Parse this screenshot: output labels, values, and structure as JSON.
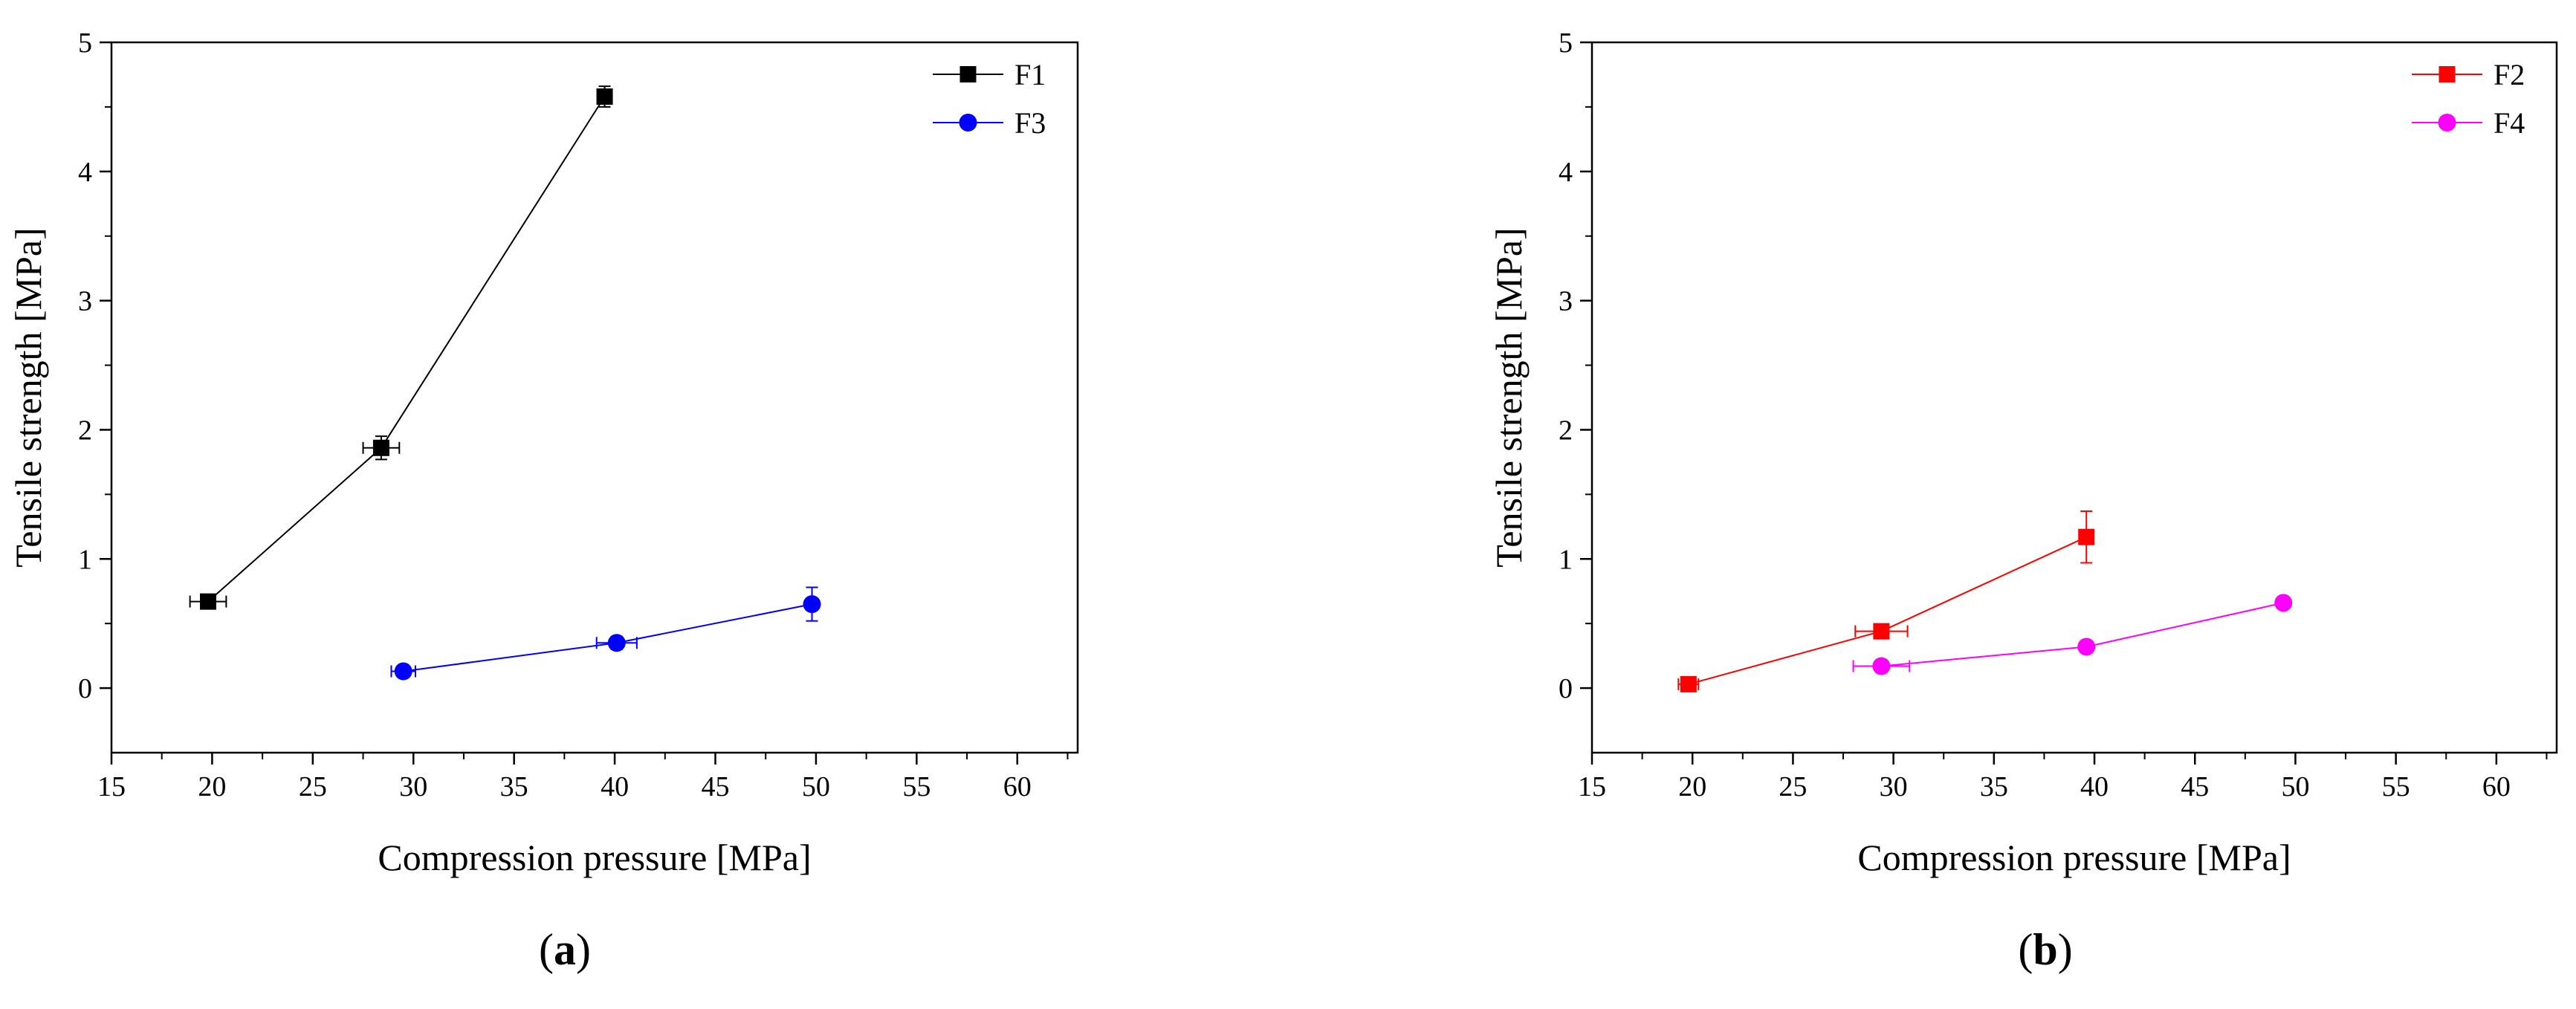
{
  "panels": [
    {
      "caption": "(a)",
      "caption_letter": "a",
      "chart_data": {
        "type": "scatter",
        "xlabel": "Compression pressure [MPa]",
        "ylabel": "Tensile strength [MPa]",
        "xlim": [
          15,
          63
        ],
        "ylim": [
          -0.5,
          5
        ],
        "xticks": [
          15,
          20,
          25,
          30,
          35,
          40,
          45,
          50,
          55,
          60
        ],
        "yticks": [
          0,
          1,
          2,
          3,
          4,
          5
        ],
        "grid": false,
        "legend_position": "top-right",
        "series": [
          {
            "name": "F1",
            "color": "#000000",
            "marker": "square",
            "x": [
              19.8,
              28.4,
              39.5
            ],
            "y": [
              0.67,
              1.86,
              4.58
            ],
            "x_err": [
              0.9,
              0.9,
              0.3
            ],
            "y_err": [
              0.05,
              0.09,
              0.08
            ]
          },
          {
            "name": "F3",
            "color": "#0000ff",
            "marker": "circle",
            "x": [
              29.5,
              40.1,
              49.8
            ],
            "y": [
              0.13,
              0.35,
              0.65
            ],
            "x_err": [
              0.6,
              1.0,
              0.2
            ],
            "y_err": [
              0.04,
              0.05,
              0.13
            ]
          }
        ]
      }
    },
    {
      "caption": "(b)",
      "caption_letter": "b",
      "chart_data": {
        "type": "scatter",
        "xlabel": "Compression pressure [MPa]",
        "ylabel": "Tensile strength [MPa]",
        "xlim": [
          15,
          63
        ],
        "ylim": [
          -0.5,
          5
        ],
        "xticks": [
          15,
          20,
          25,
          30,
          35,
          40,
          45,
          50,
          55,
          60
        ],
        "yticks": [
          0,
          1,
          2,
          3,
          4,
          5
        ],
        "grid": false,
        "legend_position": "top-right",
        "series": [
          {
            "name": "F2",
            "color": "#ff0000",
            "marker": "square",
            "x": [
              19.8,
              29.4,
              39.6
            ],
            "y": [
              0.03,
              0.44,
              1.17
            ],
            "x_err": [
              0.5,
              1.3,
              0.2
            ],
            "y_err": [
              0.04,
              0.04,
              0.2
            ]
          },
          {
            "name": "F4",
            "color": "#ff00ff",
            "marker": "circle",
            "x": [
              29.4,
              39.6,
              49.4
            ],
            "y": [
              0.17,
              0.32,
              0.66
            ],
            "x_err": [
              1.4,
              0.3,
              0.2
            ],
            "y_err": [
              0.05,
              0.03,
              0.03
            ]
          }
        ]
      }
    }
  ]
}
